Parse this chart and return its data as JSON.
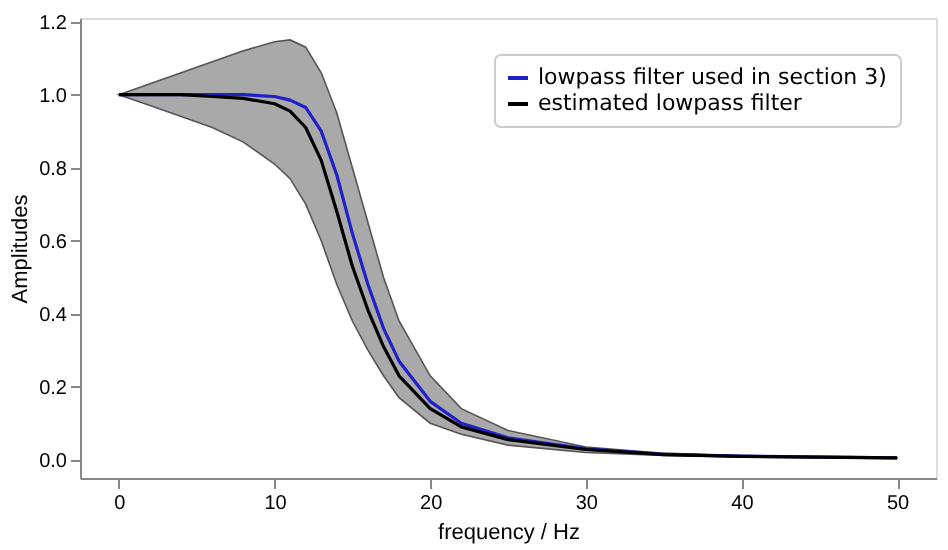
{
  "chart_data": {
    "type": "line",
    "xlabel": "frequency / Hz",
    "ylabel": "Amplitudes",
    "x": [
      0,
      2,
      4,
      6,
      8,
      10,
      11,
      12,
      13,
      14,
      15,
      16,
      17,
      18,
      20,
      22,
      25,
      30,
      35,
      40,
      50
    ],
    "series": [
      {
        "name": "lowpass filter used in section 3)",
        "color": "#2020c8",
        "values": [
          1,
          1,
          1,
          1,
          1,
          0.995,
          0.985,
          0.965,
          0.9,
          0.78,
          0.62,
          0.48,
          0.36,
          0.27,
          0.16,
          0.1,
          0.06,
          0.03,
          0.015,
          0.01,
          0.005
        ]
      },
      {
        "name": "estimated lowpass filter",
        "color": "#000000",
        "values": [
          1,
          1,
          1,
          0.995,
          0.99,
          0.975,
          0.955,
          0.91,
          0.82,
          0.68,
          0.53,
          0.41,
          0.31,
          0.23,
          0.14,
          0.09,
          0.055,
          0.028,
          0.014,
          0.009,
          0.005
        ],
        "lower": [
          1,
          0.97,
          0.94,
          0.91,
          0.87,
          0.81,
          0.77,
          0.7,
          0.6,
          0.48,
          0.38,
          0.3,
          0.23,
          0.17,
          0.1,
          0.07,
          0.04,
          0.02,
          0.012,
          0.008,
          0.004
        ],
        "upper": [
          1,
          1.03,
          1.06,
          1.09,
          1.12,
          1.145,
          1.15,
          1.13,
          1.06,
          0.95,
          0.8,
          0.65,
          0.5,
          0.38,
          0.23,
          0.14,
          0.08,
          0.035,
          0.018,
          0.01,
          0.005
        ]
      }
    ],
    "xlim": [
      -2.5,
      52.5
    ],
    "xticks": [
      0,
      10,
      20,
      30,
      40,
      50
    ],
    "ylim": [
      -0.05,
      1.21
    ],
    "yticks": [
      {
        "value": 0,
        "label": "0.0"
      },
      {
        "value": 0.2,
        "label": "0.2"
      },
      {
        "value": 0.4,
        "label": "0.4"
      },
      {
        "value": 0.6,
        "label": "0.6"
      },
      {
        "value": 0.8,
        "label": "0.8"
      },
      {
        "value": 1,
        "label": "1.0"
      },
      {
        "value": 1.2,
        "label": "1.2"
      }
    ],
    "legend": "top right",
    "grid": false,
    "line_style": "solid",
    "marker": "none"
  }
}
